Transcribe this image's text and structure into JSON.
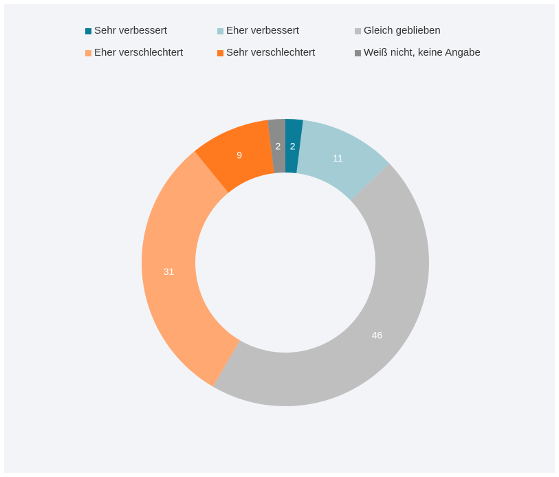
{
  "chart_data": {
    "type": "pie",
    "title": "",
    "donut": true,
    "legend_placement": "top",
    "slices": [
      {
        "name": "Sehr verbessert",
        "value": 2,
        "color": "#0b7d98"
      },
      {
        "name": "Eher verbessert",
        "value": 11,
        "color": "#a3ccd5"
      },
      {
        "name": "Gleich geblieben",
        "value": 46,
        "color": "#bfbfbf"
      },
      {
        "name": "Eher verschlechtert",
        "value": 31,
        "color": "#ffa871"
      },
      {
        "name": "Sehr verschlechtert",
        "value": 9,
        "color": "#ff7a1f"
      },
      {
        "name": "Weiß nicht, keine Angabe",
        "value": 2,
        "color": "#8c8c8c"
      }
    ],
    "legend_order": [
      "Sehr verbessert",
      "Eher verbessert",
      "Gleich geblieben",
      "Eher verschlechtert",
      "Sehr verschlechtert",
      "Weiß nicht, keine Angabe"
    ]
  }
}
